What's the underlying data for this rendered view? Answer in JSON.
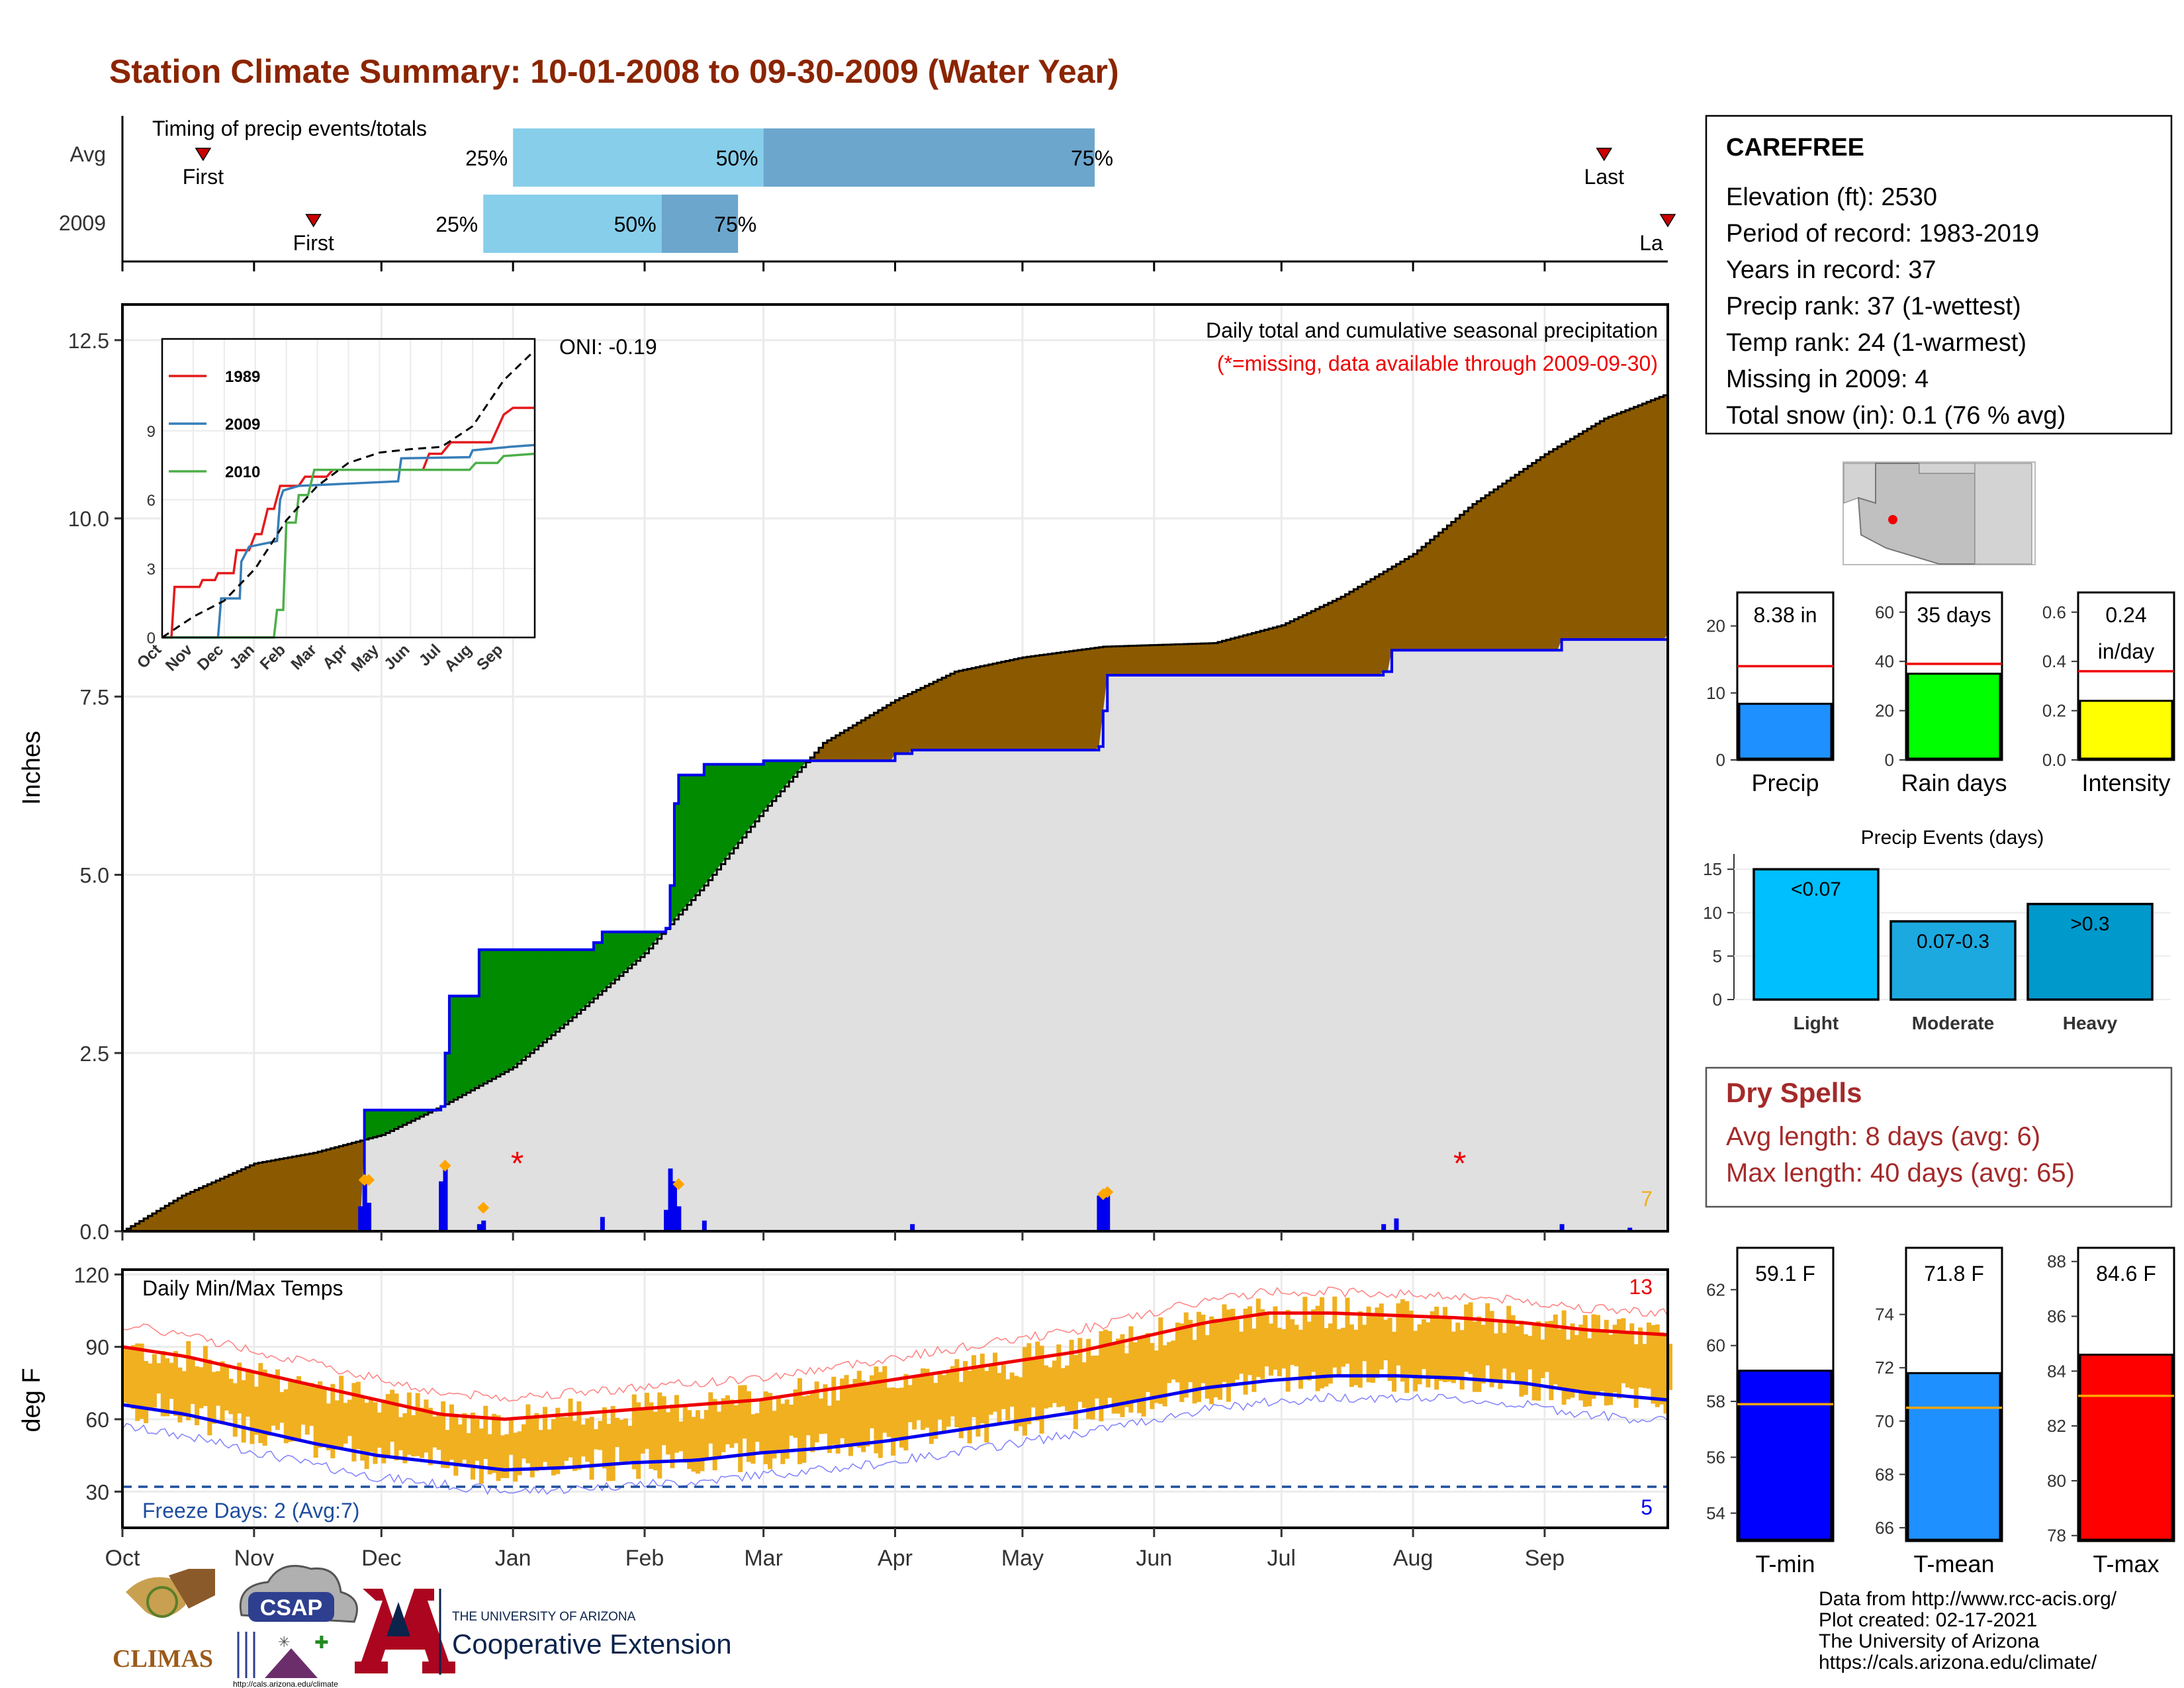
{
  "title": "Station Climate Summary: 10-01-2008 to 09-30-2009 (Water Year)",
  "colors": {
    "title": "#8B2500",
    "brown": "#8B5A00",
    "green": "#008B00",
    "blue": "#0000EE",
    "gray_fill": "#E0E0E0",
    "orange": "#F0B020",
    "light_blue": "#87CEEB",
    "mid_blue": "#6CA6CD",
    "dry_red": "#A52A2A"
  },
  "timing": {
    "label": "Timing of precip events/totals",
    "rows": [
      {
        "name": "Avg",
        "first_label": "First",
        "last_label": "Last",
        "first_date": "2008-10-20",
        "last_date": "2009-09-15",
        "p25": "2009-01-01",
        "p50": "2009-03-01",
        "p75": "2009-05-18",
        "p25_label": "25%",
        "p50_label": "50%",
        "p75_label": "75%"
      },
      {
        "name": "2009",
        "first_label": "First",
        "last_label": "La",
        "first_date": "2008-11-15",
        "last_date": "2009-09-30",
        "p25": "2008-12-25",
        "p50": "2009-02-05",
        "p75": "2009-02-23",
        "p25_label": "25%",
        "p50_label": "50%",
        "p75_label": "75%"
      }
    ]
  },
  "precip_panel": {
    "ylabel": "Inches",
    "yticks": [
      "0.0",
      "2.5",
      "5.0",
      "7.5",
      "10.0",
      "12.5"
    ],
    "ylim": [
      0,
      13
    ],
    "note1": "Daily total and cumulative seasonal precipitation",
    "note2": "(*=missing, data available through 2009-09-30)",
    "oni": "ONI: -0.19",
    "corner_count": "7",
    "avg_cumulative": [
      [
        "2008-10-01",
        0.0
      ],
      [
        "2008-10-15",
        0.5
      ],
      [
        "2008-11-01",
        0.95
      ],
      [
        "2008-11-15",
        1.1
      ],
      [
        "2008-12-01",
        1.35
      ],
      [
        "2008-12-15",
        1.75
      ],
      [
        "2009-01-01",
        2.3
      ],
      [
        "2009-01-15",
        3.0
      ],
      [
        "2009-02-01",
        3.9
      ],
      [
        "2009-02-15",
        4.85
      ],
      [
        "2009-03-01",
        5.9
      ],
      [
        "2009-03-15",
        6.85
      ],
      [
        "2009-04-01",
        7.45
      ],
      [
        "2009-04-15",
        7.85
      ],
      [
        "2009-05-01",
        8.05
      ],
      [
        "2009-05-20",
        8.2
      ],
      [
        "2009-06-15",
        8.25
      ],
      [
        "2009-07-01",
        8.5
      ],
      [
        "2009-07-15",
        8.9
      ],
      [
        "2009-08-01",
        9.5
      ],
      [
        "2009-08-15",
        10.2
      ],
      [
        "2009-09-01",
        10.9
      ],
      [
        "2009-09-15",
        11.4
      ],
      [
        "2009-09-30",
        11.75
      ]
    ],
    "obs_cumulative": [
      [
        "2008-10-01",
        0.0
      ],
      [
        "2008-11-26",
        0.05
      ],
      [
        "2008-11-27",
        1.7
      ],
      [
        "2008-12-15",
        1.75
      ],
      [
        "2008-12-16",
        2.5
      ],
      [
        "2008-12-17",
        3.3
      ],
      [
        "2008-12-24",
        3.95
      ],
      [
        "2009-01-20",
        4.05
      ],
      [
        "2009-01-22",
        4.2
      ],
      [
        "2009-02-06",
        4.25
      ],
      [
        "2009-02-07",
        4.85
      ],
      [
        "2009-02-08",
        6.0
      ],
      [
        "2009-02-09",
        6.4
      ],
      [
        "2009-02-15",
        6.55
      ],
      [
        "2009-03-01",
        6.6
      ],
      [
        "2009-04-01",
        6.7
      ],
      [
        "2009-04-05",
        6.75
      ],
      [
        "2009-05-19",
        6.8
      ],
      [
        "2009-05-20",
        7.3
      ],
      [
        "2009-05-21",
        7.8
      ],
      [
        "2009-07-25",
        7.85
      ],
      [
        "2009-07-27",
        8.15
      ],
      [
        "2009-09-05",
        8.3
      ],
      [
        "2009-09-30",
        8.38
      ]
    ],
    "daily_bars": [
      [
        "2008-11-26",
        0.35
      ],
      [
        "2008-11-27",
        0.75
      ],
      [
        "2008-11-28",
        0.4
      ],
      [
        "2008-12-15",
        0.7
      ],
      [
        "2008-12-16",
        0.92
      ],
      [
        "2008-12-24",
        0.1
      ],
      [
        "2008-12-25",
        0.15
      ],
      [
        "2009-01-22",
        0.2
      ],
      [
        "2009-02-06",
        0.3
      ],
      [
        "2009-02-07",
        0.88
      ],
      [
        "2009-02-08",
        0.7
      ],
      [
        "2009-02-09",
        0.35
      ],
      [
        "2009-02-15",
        0.15
      ],
      [
        "2009-04-05",
        0.1
      ],
      [
        "2009-05-19",
        0.5
      ],
      [
        "2009-05-20",
        0.55
      ],
      [
        "2009-05-21",
        0.5
      ],
      [
        "2009-07-25",
        0.1
      ],
      [
        "2009-07-28",
        0.18
      ],
      [
        "2009-09-05",
        0.1
      ],
      [
        "2009-09-21",
        0.05
      ]
    ],
    "missing_markers": [
      [
        "2009-01-02",
        1.0
      ],
      [
        "2009-08-12",
        1.0
      ]
    ],
    "orange_markers": [
      [
        "2008-11-27",
        0.72
      ],
      [
        "2008-11-28",
        0.72
      ],
      [
        "2008-12-16",
        0.92
      ],
      [
        "2008-12-25",
        0.33
      ],
      [
        "2009-02-09",
        0.66
      ],
      [
        "2009-05-20",
        0.52
      ],
      [
        "2009-05-21",
        0.55
      ]
    ]
  },
  "inset": {
    "months": [
      "Oct",
      "Nov",
      "Dec",
      "Jan",
      "Feb",
      "Mar",
      "Apr",
      "May",
      "Jun",
      "Jul",
      "Aug",
      "Sep"
    ],
    "yticks": [
      "0",
      "3",
      "6",
      "9"
    ],
    "series": [
      {
        "name": "1989",
        "color": "#E41A1C",
        "values": [
          [
            0,
            0
          ],
          [
            0.3,
            0
          ],
          [
            0.4,
            2.2
          ],
          [
            1.2,
            2.2
          ],
          [
            1.3,
            2.5
          ],
          [
            1.7,
            2.5
          ],
          [
            1.8,
            2.8
          ],
          [
            2.3,
            2.8
          ],
          [
            2.4,
            3.8
          ],
          [
            2.8,
            3.8
          ],
          [
            3.0,
            4.5
          ],
          [
            3.2,
            4.5
          ],
          [
            3.4,
            5.6
          ],
          [
            3.6,
            5.6
          ],
          [
            3.8,
            6.6
          ],
          [
            4.4,
            6.6
          ],
          [
            4.6,
            7.0
          ],
          [
            5.3,
            7.0
          ],
          [
            5.5,
            7.3
          ],
          [
            8.4,
            7.3
          ],
          [
            8.6,
            8.0
          ],
          [
            9.0,
            8.0
          ],
          [
            9.3,
            8.5
          ],
          [
            10.6,
            8.5
          ],
          [
            11.0,
            9.7
          ],
          [
            11.3,
            10.0
          ],
          [
            12,
            10.0
          ]
        ]
      },
      {
        "name": "2009",
        "color": "#377EB8",
        "values": [
          [
            0,
            0
          ],
          [
            1.8,
            0
          ],
          [
            1.9,
            1.7
          ],
          [
            2.5,
            1.7
          ],
          [
            2.55,
            3.3
          ],
          [
            2.8,
            3.95
          ],
          [
            3.7,
            4.2
          ],
          [
            3.8,
            6.0
          ],
          [
            3.9,
            6.4
          ],
          [
            4.4,
            6.6
          ],
          [
            6.0,
            6.7
          ],
          [
            7.6,
            6.8
          ],
          [
            7.7,
            7.8
          ],
          [
            9.9,
            7.85
          ],
          [
            10.0,
            8.15
          ],
          [
            11.2,
            8.3
          ],
          [
            12,
            8.38
          ]
        ]
      },
      {
        "name": "2010",
        "color": "#4DAF4A",
        "values": [
          [
            0,
            0
          ],
          [
            3.6,
            0
          ],
          [
            3.7,
            1.2
          ],
          [
            3.9,
            1.2
          ],
          [
            4.0,
            5.0
          ],
          [
            4.3,
            5.0
          ],
          [
            4.4,
            6.2
          ],
          [
            4.7,
            6.2
          ],
          [
            4.9,
            7.3
          ],
          [
            9.9,
            7.3
          ],
          [
            10.1,
            7.6
          ],
          [
            10.8,
            7.6
          ],
          [
            11.0,
            7.9
          ],
          [
            12,
            8.0
          ]
        ]
      }
    ],
    "avg_dashed": [
      [
        0,
        0
      ],
      [
        1,
        0.9
      ],
      [
        2,
        1.6
      ],
      [
        3,
        3.0
      ],
      [
        4,
        5.1
      ],
      [
        5,
        6.6
      ],
      [
        6,
        7.6
      ],
      [
        7,
        8.05
      ],
      [
        8,
        8.2
      ],
      [
        9,
        8.3
      ],
      [
        10,
        9.2
      ],
      [
        11,
        11.2
      ],
      [
        12,
        12.5
      ]
    ]
  },
  "temp_panel": {
    "ylabel": "deg F",
    "title": "Daily Min/Max Temps",
    "yticks": [
      "30",
      "60",
      "90",
      "120"
    ],
    "ylim": [
      15,
      122
    ],
    "freeze_label": "Freeze Days: 2 (Avg:7)",
    "freeze_line": 32,
    "top_count": "13",
    "bottom_count": "5",
    "avg_max": [
      [
        0,
        90
      ],
      [
        15,
        86
      ],
      [
        30,
        80
      ],
      [
        45,
        74
      ],
      [
        60,
        68
      ],
      [
        75,
        62
      ],
      [
        90,
        60
      ],
      [
        105,
        62
      ],
      [
        120,
        64
      ],
      [
        135,
        66
      ],
      [
        150,
        68
      ],
      [
        165,
        72
      ],
      [
        180,
        76
      ],
      [
        195,
        80
      ],
      [
        210,
        84
      ],
      [
        225,
        88
      ],
      [
        240,
        94
      ],
      [
        255,
        100
      ],
      [
        270,
        104
      ],
      [
        285,
        104
      ],
      [
        300,
        103
      ],
      [
        315,
        102
      ],
      [
        330,
        100
      ],
      [
        345,
        97
      ],
      [
        364,
        95
      ]
    ],
    "avg_min": [
      [
        0,
        66
      ],
      [
        15,
        62
      ],
      [
        30,
        56
      ],
      [
        45,
        50
      ],
      [
        60,
        45
      ],
      [
        75,
        42
      ],
      [
        90,
        39
      ],
      [
        105,
        40
      ],
      [
        120,
        42
      ],
      [
        135,
        43
      ],
      [
        150,
        46
      ],
      [
        165,
        48
      ],
      [
        180,
        51
      ],
      [
        195,
        55
      ],
      [
        210,
        59
      ],
      [
        225,
        63
      ],
      [
        240,
        68
      ],
      [
        255,
        73
      ],
      [
        270,
        76
      ],
      [
        285,
        78
      ],
      [
        300,
        78
      ],
      [
        315,
        77
      ],
      [
        330,
        75
      ],
      [
        345,
        71
      ],
      [
        364,
        68
      ]
    ]
  },
  "months": [
    "Oct",
    "Nov",
    "Dec",
    "Jan",
    "Feb",
    "Mar",
    "Apr",
    "May",
    "Jun",
    "Jul",
    "Aug",
    "Sep"
  ],
  "station": {
    "name": "CAREFREE",
    "lines": [
      "Elevation (ft): 2530",
      "Period of record: 1983-2019",
      "Years in record: 37",
      "Precip rank: 37 (1-wettest)",
      "Temp rank: 24 (1-warmest)",
      "Missing in 2009: 4",
      "Total snow (in): 0.1 (76 % avg)"
    ]
  },
  "mini_bars": [
    {
      "label": "Precip",
      "value_text": "8.38 in",
      "value": 8.38,
      "avg": 14.0,
      "ymax": 25,
      "yticks": [
        "0",
        "10",
        "20"
      ],
      "color": "#1E90FF"
    },
    {
      "label": "Rain days",
      "value_text": "35 days",
      "value": 35,
      "avg": 39,
      "ymax": 68,
      "yticks": [
        "0",
        "20",
        "40",
        "60"
      ],
      "color": "#00FF00"
    },
    {
      "label": "Intensity",
      "value_text": "0.24",
      "value_text2": "in/day",
      "value": 0.24,
      "avg": 0.36,
      "ymax": 0.68,
      "yticks": [
        "0.0",
        "0.2",
        "0.4",
        "0.6"
      ],
      "color": "#FFFF00"
    }
  ],
  "precip_events": {
    "title": "Precip Events (days)",
    "yticks": [
      "0",
      "5",
      "10",
      "15"
    ],
    "bars": [
      {
        "label": "Light",
        "range": "<0.07",
        "value": 15,
        "color": "#00BFFF"
      },
      {
        "label": "Moderate",
        "range": "0.07-0.3",
        "value": 9,
        "color": "#1CA9E0"
      },
      {
        "label": "Heavy",
        "range": ">0.3",
        "value": 11,
        "color": "#0099CC"
      }
    ]
  },
  "dry_spells": {
    "title": "Dry Spells",
    "avg_length": "Avg length: 8 days (avg: 6)",
    "max_length": "Max length: 40 days (avg: 65)"
  },
  "temp_bars": [
    {
      "label": "T-min",
      "value_text": "59.1 F",
      "value": 59.1,
      "avg": 57.9,
      "ymin": 53,
      "ymax": 63.5,
      "yticks": [
        "54",
        "56",
        "58",
        "60",
        "62"
      ],
      "color": "#0000FF"
    },
    {
      "label": "T-mean",
      "value_text": "71.8 F",
      "value": 71.8,
      "avg": 70.5,
      "ymin": 65.5,
      "ymax": 76.5,
      "yticks": [
        "66",
        "68",
        "70",
        "72",
        "74"
      ],
      "color": "#1E90FF"
    },
    {
      "label": "T-max",
      "value_text": "84.6 F",
      "value": 84.6,
      "avg": 83.1,
      "ymin": 77.8,
      "ymax": 88.5,
      "yticks": [
        "78",
        "80",
        "82",
        "84",
        "86",
        "88"
      ],
      "color": "#FF0000"
    }
  ],
  "footer": {
    "lines": [
      "Data from http://www.rcc-acis.org/",
      "Plot created: 02-17-2021",
      "The University of Arizona",
      "https://cals.arizona.edu/climate/"
    ],
    "logo_climas": "CLIMAS",
    "logo_csap": "CSAP",
    "logo_csap_url": "http://cals.arizona.edu/climate",
    "logo_ua_small": "THE UNIVERSITY OF ARIZONA",
    "logo_ua_big": "Cooperative Extension"
  }
}
